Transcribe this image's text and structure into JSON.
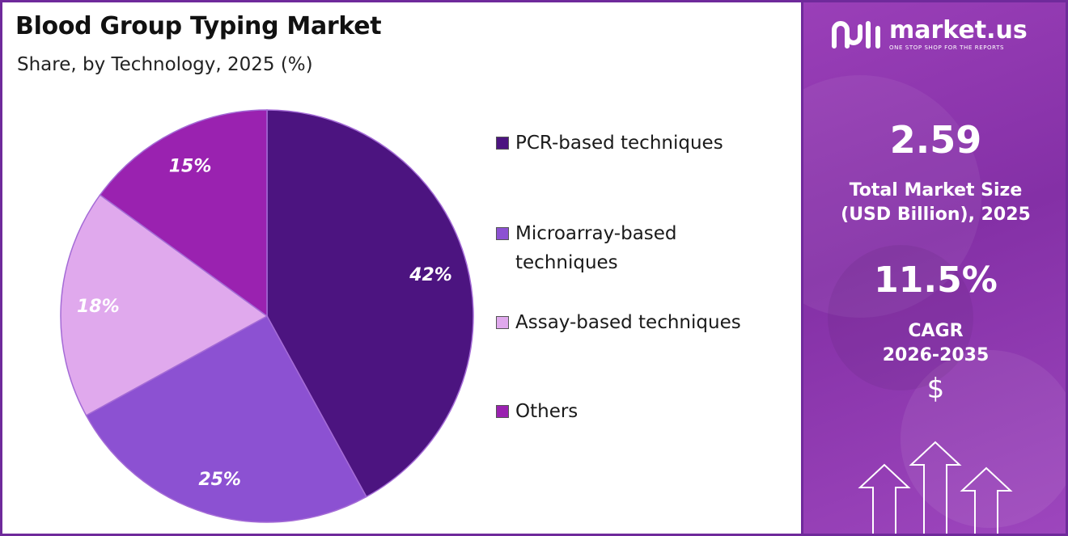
{
  "title": "Blood Group Typing Market",
  "subtitle": "Share, by Technology, 2025 (%)",
  "chart_data": {
    "type": "pie",
    "title": "Blood Group Typing Market",
    "subtitle": "Share, by Technology, 2025 (%)",
    "categories": [
      "PCR-based techniques",
      "Microarray-based techniques",
      "Assay-based techniques",
      "Others"
    ],
    "values": [
      42,
      25,
      18,
      15
    ],
    "data_labels": [
      "42%",
      "25%",
      "18%",
      "15%"
    ],
    "colors": [
      "#4c1480",
      "#8c51d2",
      "#e0a9ed",
      "#9a22b0"
    ],
    "start_angle": "12 o'clock",
    "direction": "clockwise",
    "legend_position": "right"
  },
  "legend": [
    {
      "label": "PCR-based techniques",
      "color": "#4c1480"
    },
    {
      "label": "Microarray-based techniques",
      "color": "#8c51d2"
    },
    {
      "label": "Assay-based techniques",
      "color": "#e0a9ed"
    },
    {
      "label": "Others",
      "color": "#9a22b0"
    }
  ],
  "sidebar": {
    "brand": "market.us",
    "tagline": "ONE STOP SHOP FOR THE REPORTS",
    "market_size_value": "2.59",
    "market_size_label_1": "Total Market Size",
    "market_size_label_2": "(USD Billion), 2025",
    "cagr_value": "11.5%",
    "cagr_label_1": "CAGR",
    "cagr_label_2": "2026-2035",
    "currency_symbol": "$",
    "icons": [
      "market-us-logo-icon",
      "up-arrow-icon"
    ],
    "background_color": "#8f36ae"
  }
}
